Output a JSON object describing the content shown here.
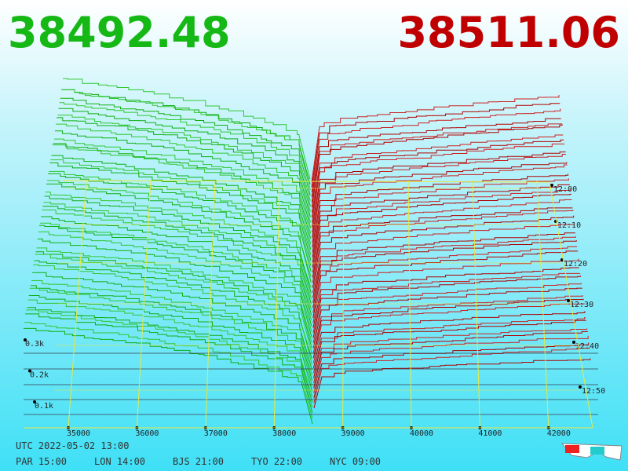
{
  "header": {
    "bid": "38492.48",
    "ask": "38511.06"
  },
  "depth_axis": {
    "labels": [
      "0.3k",
      "0.2k",
      "0.1k"
    ]
  },
  "price_axis": {
    "labels": [
      "35000",
      "36000",
      "37000",
      "38000",
      "39000",
      "40000",
      "41000",
      "42000"
    ]
  },
  "time_axis": {
    "labels": [
      "12:00",
      "12:10",
      "12:20",
      "12:30",
      "12:40",
      "12:50"
    ]
  },
  "footer": {
    "utc": "UTC 2022-05-02 13:00",
    "zones": [
      "PAR 15:00",
      "LON 14:00",
      "BJS 21:00",
      "TYO 22:00",
      "NYC 09:00"
    ]
  }
}
